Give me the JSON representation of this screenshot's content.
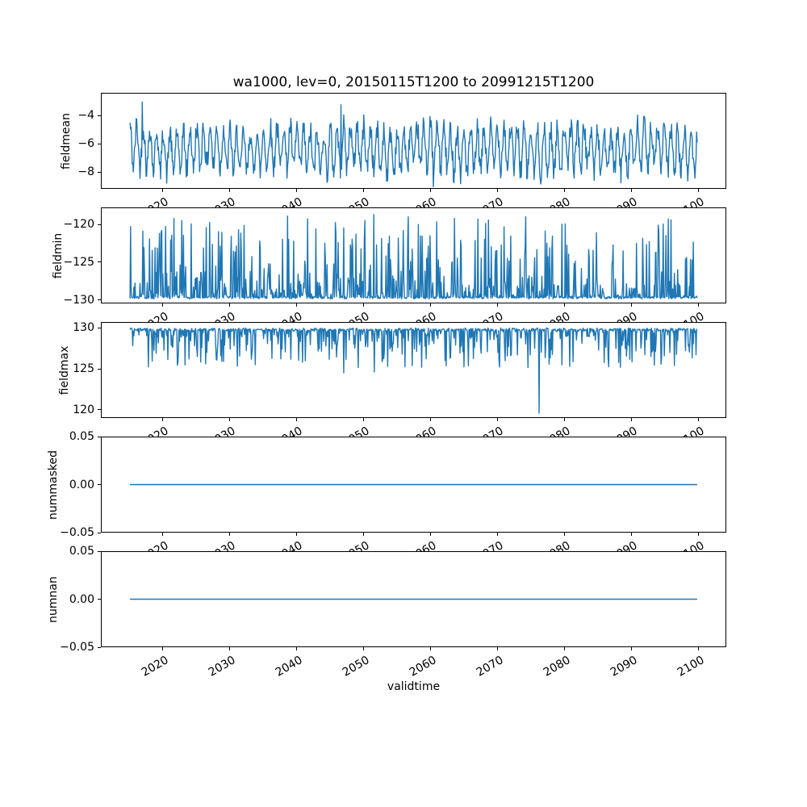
{
  "figure": {
    "title": "wa1000, lev=0, 20150115T1200 to 20991215T1200",
    "xlabel": "validtime",
    "background_color": "#ffffff",
    "line_color": "#1f77b4",
    "text_color": "#000000",
    "x_tick_rotation_deg": 30
  },
  "chart_data": {
    "type": "line",
    "title": "wa1000, lev=0, 20150115T1200 to 20991215T1200",
    "xlabel": "validtime",
    "x_axis": {
      "label": "validtime",
      "start": "20150115T1200",
      "end": "20991215T1200",
      "x_start": 2015.04,
      "x_end": 2099.96,
      "xlim": [
        2010.8,
        2104.2
      ],
      "points_per_year": 12,
      "tick_years": [
        2020,
        2030,
        2040,
        2050,
        2060,
        2070,
        2080,
        2090,
        2100
      ],
      "tick_labels": [
        "2020",
        "2030",
        "2040",
        "2050",
        "2060",
        "2070",
        "2080",
        "2090",
        "2100"
      ]
    },
    "grid": false,
    "legend": "none",
    "panels": [
      {
        "ylabel": "fieldmean",
        "ylim": [
          -9.2,
          -2.4
        ],
        "yticks": [
          -4,
          -6,
          -8
        ],
        "ytick_labels": [
          "−4",
          "−6",
          "−8"
        ],
        "series": {
          "kind": "seasonal_noise",
          "base": -6.4,
          "seasonal_amplitude": 1.5,
          "noise_amplitude": 0.85,
          "slow_amplitude": 0.25,
          "slow_period_years": 11,
          "seed": 42
        },
        "observed": {
          "min": -9.1,
          "max": -3.0
        },
        "notable_points": [
          {
            "x": 2016.9,
            "y": -3.0
          },
          {
            "x": 2046.6,
            "y": -3.2
          },
          {
            "x": 2060.5,
            "y": -9.1
          }
        ]
      },
      {
        "ylabel": "fieldmin",
        "ylim": [
          -130.45,
          -117.75
        ],
        "yticks": [
          -120,
          -125,
          -130
        ],
        "ytick_labels": [
          "−120",
          "−125",
          "−130"
        ],
        "series": {
          "kind": "upward_spikes",
          "base": -129.95,
          "baseline_jitter": 0.35,
          "spike_probability": 0.65,
          "spike_max": 11.0,
          "spike_exponent": 3.8,
          "seed": 7
        },
        "observed": {
          "min": -130.0,
          "max": -118.6
        },
        "notable_points": [
          {
            "x": 2021.3,
            "y": -121.4
          },
          {
            "x": 2031.6,
            "y": -121.1
          },
          {
            "x": 2047.0,
            "y": -120.4
          },
          {
            "x": 2051.5,
            "y": -118.6
          },
          {
            "x": 2094.2,
            "y": -120.8
          }
        ]
      },
      {
        "ylabel": "fieldmax",
        "ylim": [
          119.0,
          130.7
        ],
        "yticks": [
          130,
          125,
          120
        ],
        "ytick_labels": [
          "130",
          "125",
          "120"
        ],
        "series": {
          "kind": "downward_spikes",
          "base": 130.05,
          "baseline_jitter": 0.4,
          "spike_probability": 0.6,
          "spike_max": 4.8,
          "spike_exponent": 3.5,
          "seed": 13
        },
        "observed": {
          "min": 119.5,
          "max": 130.1
        },
        "notable_points": [
          {
            "x": 2033.2,
            "y": 126.2
          },
          {
            "x": 2047.0,
            "y": 124.5
          },
          {
            "x": 2051.6,
            "y": 124.6
          },
          {
            "x": 2057.3,
            "y": 125.4
          },
          {
            "x": 2063.0,
            "y": 126.3
          },
          {
            "x": 2071.2,
            "y": 126.0
          },
          {
            "x": 2076.3,
            "y": 119.5
          }
        ]
      },
      {
        "ylabel": "nummasked",
        "ylim": [
          -0.05,
          0.05
        ],
        "yticks": [
          0.05,
          0.0,
          -0.05
        ],
        "ytick_labels": [
          "0.05",
          "0.00",
          "−0.05"
        ],
        "series": {
          "kind": "constant",
          "value": 0.0
        },
        "observed": {
          "min": 0.0,
          "max": 0.0
        },
        "notable_points": []
      },
      {
        "ylabel": "numnan",
        "ylim": [
          -0.05,
          0.05
        ],
        "yticks": [
          0.05,
          0.0,
          -0.05
        ],
        "ytick_labels": [
          "0.05",
          "0.00",
          "−0.05"
        ],
        "series": {
          "kind": "constant",
          "value": 0.0
        },
        "observed": {
          "min": 0.0,
          "max": 0.0
        },
        "notable_points": []
      }
    ]
  }
}
